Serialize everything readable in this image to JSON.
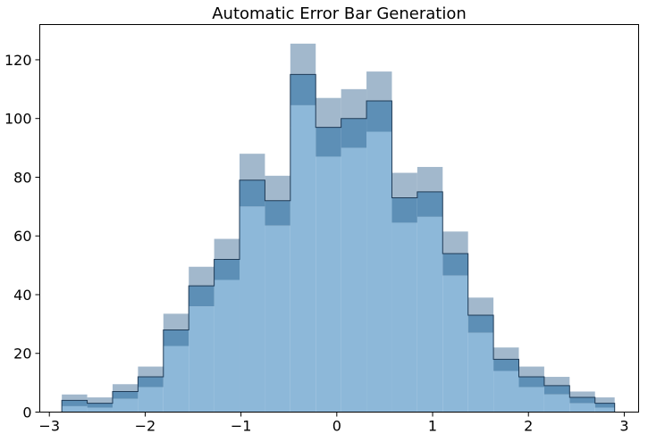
{
  "chart_data": {
    "type": "histogram",
    "title": "Automatic Error Bar Generation",
    "xlabel": "",
    "ylabel": "",
    "xlim": [
      -3.1,
      3.15
    ],
    "ylim": [
      0,
      132
    ],
    "x_ticks": [
      -3,
      -2,
      -1,
      0,
      1,
      2,
      3
    ],
    "x_tick_labels": [
      "−3",
      "−2",
      "−1",
      "0",
      "1",
      "2",
      "3"
    ],
    "y_ticks": [
      0,
      20,
      40,
      60,
      80,
      100,
      120
    ],
    "y_tick_labels": [
      "0",
      "20",
      "40",
      "60",
      "80",
      "100",
      "120"
    ],
    "grid": false,
    "legend": "none",
    "colors": {
      "fill": "#8db8d9",
      "error_band": "#5d8fb6",
      "error_band_upper": "#a2b8cc",
      "step_line": "#1f3b57"
    },
    "bin_edges": [
      -2.87,
      -2.605,
      -2.34,
      -2.075,
      -1.81,
      -1.545,
      -1.28,
      -1.015,
      -0.75,
      -0.485,
      -0.22,
      0.045,
      0.31,
      0.575,
      0.84,
      1.105,
      1.37,
      1.635,
      1.9,
      2.165,
      2.43,
      2.695,
      2.9
    ],
    "counts": [
      4,
      3,
      7,
      12,
      28,
      43,
      52,
      79,
      72,
      115,
      97,
      100,
      106,
      73,
      75,
      54,
      33,
      18,
      12,
      9,
      5,
      3
    ],
    "error_lower": [
      2,
      1.5,
      4.5,
      8.5,
      22.5,
      36,
      45,
      70,
      63.5,
      104.5,
      87,
      90,
      95.5,
      64.5,
      66.5,
      46.5,
      27,
      14,
      8.5,
      6,
      3,
      1.5
    ],
    "error_upper": [
      6,
      5,
      9.5,
      15.5,
      33.5,
      49.5,
      59,
      88,
      80.5,
      125.5,
      107,
      110,
      116,
      81.5,
      83.5,
      61.5,
      39,
      22,
      15.5,
      12,
      7,
      5
    ]
  }
}
